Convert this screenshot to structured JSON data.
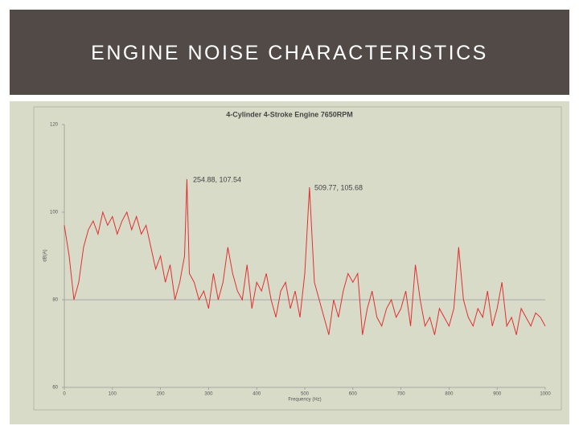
{
  "slide_title": "ENGINE NOISE CHARACTERISTICS",
  "chart_data": {
    "type": "line",
    "title": "4-Cylinder 4-Stroke Engine 7650RPM",
    "x_label": "Frequency (Hz)",
    "y_label": "dB(A)",
    "x": [
      0,
      10,
      20,
      30,
      40,
      50,
      60,
      70,
      80,
      90,
      100,
      110,
      120,
      130,
      140,
      150,
      160,
      170,
      180,
      190,
      200,
      210,
      220,
      230,
      240,
      250,
      254.88,
      260,
      270,
      280,
      290,
      300,
      310,
      320,
      330,
      340,
      350,
      360,
      370,
      380,
      390,
      400,
      410,
      420,
      430,
      440,
      450,
      460,
      470,
      480,
      490,
      500,
      509.77,
      520,
      530,
      540,
      550,
      560,
      570,
      580,
      590,
      600,
      610,
      620,
      630,
      640,
      650,
      660,
      670,
      680,
      690,
      700,
      710,
      720,
      730,
      740,
      750,
      760,
      770,
      780,
      790,
      800,
      810,
      820,
      830,
      840,
      850,
      860,
      870,
      880,
      890,
      900,
      910,
      920,
      930,
      940,
      950,
      960,
      970,
      980,
      990,
      1000
    ],
    "series": [
      {
        "name": "dB(A)",
        "color": "#e03030",
        "values": [
          97,
          90,
          80,
          84,
          92,
          96,
          98,
          95,
          100,
          97,
          99,
          95,
          98,
          100,
          96,
          99,
          95,
          97,
          92,
          87,
          90,
          84,
          88,
          80,
          84,
          90,
          107.54,
          86,
          84,
          80,
          82,
          78,
          86,
          80,
          84,
          92,
          86,
          82,
          80,
          88,
          78,
          84,
          82,
          86,
          80,
          76,
          82,
          84,
          78,
          82,
          76,
          86,
          105.68,
          84,
          80,
          76,
          72,
          80,
          76,
          82,
          86,
          84,
          86,
          72,
          78,
          82,
          76,
          74,
          78,
          80,
          76,
          78,
          82,
          74,
          88,
          80,
          74,
          76,
          72,
          78,
          76,
          74,
          78,
          92,
          80,
          76,
          74,
          78,
          76,
          82,
          74,
          78,
          84,
          74,
          76,
          72,
          78,
          76,
          74,
          77,
          76,
          74
        ]
      }
    ],
    "annotations": [
      "254.88, 107.54",
      "509.77, 105.68"
    ],
    "xlim": [
      0,
      1000
    ],
    "xticks": [
      0,
      100,
      200,
      300,
      400,
      500,
      600,
      700,
      800,
      900,
      1000
    ],
    "ylim": [
      60,
      120
    ],
    "yticks": [
      60,
      80,
      100,
      120
    ],
    "hlines": [
      80
    ]
  }
}
